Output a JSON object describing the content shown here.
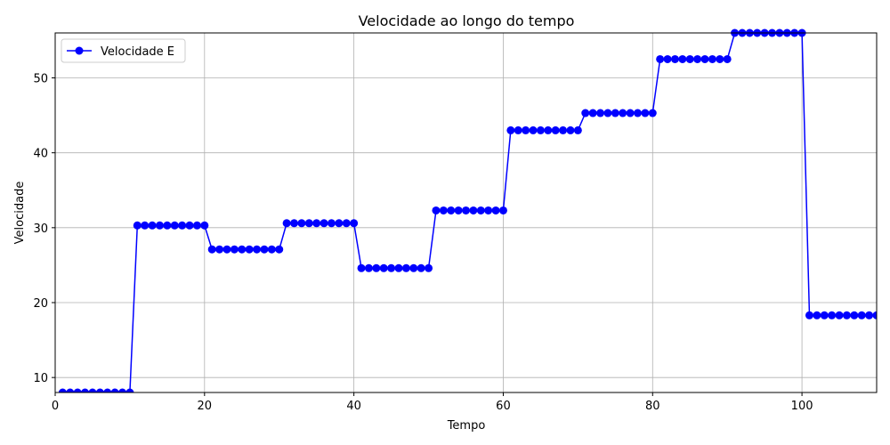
{
  "chart_data": {
    "type": "line",
    "title": "Velocidade ao longo do tempo",
    "xlabel": "Tempo",
    "ylabel": "Velocidade",
    "xlim": [
      0,
      110
    ],
    "ylim": [
      8,
      56
    ],
    "xticks": [
      0,
      20,
      40,
      60,
      80,
      100
    ],
    "yticks": [
      10,
      20,
      30,
      40,
      50
    ],
    "grid": true,
    "legend_position": "top-left",
    "colors": {
      "series": "#0000ff",
      "grid": "#b0b0b0",
      "axis": "#000000"
    },
    "series": [
      {
        "name": "Velocidade E",
        "marker": "circle",
        "segments": [
          {
            "x_start": 1,
            "x_end": 10,
            "y": 8.0
          },
          {
            "x_start": 11,
            "x_end": 20,
            "y": 30.3
          },
          {
            "x_start": 21,
            "x_end": 30,
            "y": 27.1
          },
          {
            "x_start": 31,
            "x_end": 40,
            "y": 30.6
          },
          {
            "x_start": 41,
            "x_end": 50,
            "y": 24.6
          },
          {
            "x_start": 51,
            "x_end": 60,
            "y": 32.3
          },
          {
            "x_start": 61,
            "x_end": 70,
            "y": 43.0
          },
          {
            "x_start": 71,
            "x_end": 80,
            "y": 45.3
          },
          {
            "x_start": 81,
            "x_end": 90,
            "y": 52.5
          },
          {
            "x_start": 91,
            "x_end": 100,
            "y": 56.0
          },
          {
            "x_start": 101,
            "x_end": 110,
            "y": 18.3
          }
        ]
      }
    ]
  }
}
